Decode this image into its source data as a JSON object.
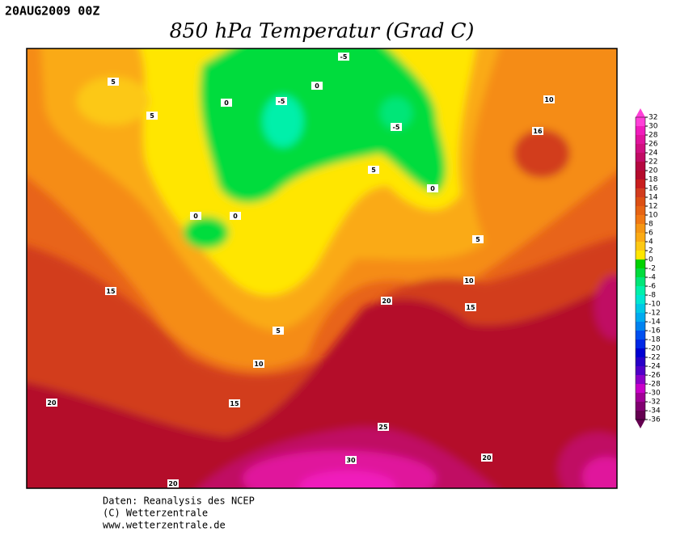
{
  "header": {
    "date": "20AUG2009 00Z",
    "title": "850 hPa Temperatur (Grad C)"
  },
  "map": {
    "contour_labels": [
      -5,
      0,
      0,
      -5,
      -5,
      5,
      5,
      10,
      16,
      5,
      0,
      0,
      0,
      5,
      10,
      15,
      20,
      15,
      5,
      10,
      15,
      20,
      25,
      20,
      30,
      20
    ]
  },
  "legend": {
    "ticks": [
      32,
      30,
      28,
      26,
      24,
      22,
      20,
      18,
      16,
      14,
      12,
      10,
      8,
      6,
      4,
      2,
      0,
      -2,
      -4,
      -6,
      -8,
      -10,
      -12,
      -14,
      -16,
      -18,
      -20,
      -22,
      -24,
      -26,
      -28,
      -30,
      -32,
      -34,
      -36
    ],
    "colors": [
      "#ff40d8",
      "#f01cbc",
      "#e0149c",
      "#d01080",
      "#c00c64",
      "#b40840",
      "#b40c2c",
      "#c81e1e",
      "#d23c1e",
      "#dc5014",
      "#e66414",
      "#f07814",
      "#f59614",
      "#faaa14",
      "#fcc814",
      "#ffe600",
      "#00d200",
      "#00dc3c",
      "#00e678",
      "#00f0aa",
      "#00e6d2",
      "#00c8e6",
      "#00aaf0",
      "#0082f0",
      "#0050f0",
      "#0028e6",
      "#0000d2",
      "#2800c8",
      "#5000c8",
      "#8c00c8",
      "#c800c8",
      "#a00096",
      "#800070",
      "#640050"
    ]
  },
  "footer": {
    "lines": [
      "Daten: Reanalysis des NCEP",
      "(C) Wetterzentrale",
      "www.wetterzentrale.de"
    ]
  }
}
